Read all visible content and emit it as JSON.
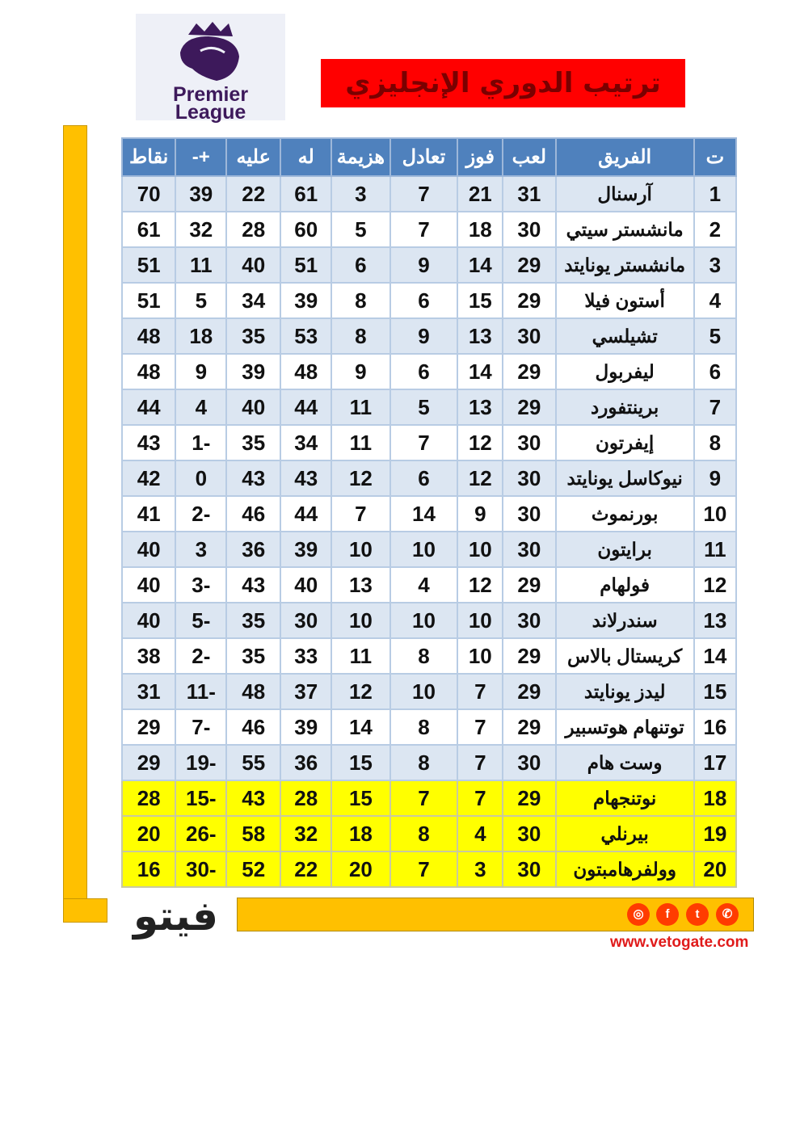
{
  "logo": {
    "line1": "Premier",
    "line2": "League"
  },
  "title": "ترتيب الدوري الإنجليزي",
  "table": {
    "headers": [
      "ت",
      "الفريق",
      "لعب",
      "فوز",
      "تعادل",
      "هزيمة",
      "له",
      "عليه",
      "+-",
      "نقاط"
    ],
    "rows": [
      [
        "1",
        "آرسنال",
        "31",
        "21",
        "7",
        "3",
        "61",
        "22",
        "39",
        "70"
      ],
      [
        "2",
        "مانشستر سيتي",
        "30",
        "18",
        "7",
        "5",
        "60",
        "28",
        "32",
        "61"
      ],
      [
        "3",
        "مانشستر يونايتد",
        "29",
        "14",
        "9",
        "6",
        "51",
        "40",
        "11",
        "51"
      ],
      [
        "4",
        "أستون فيلا",
        "29",
        "15",
        "6",
        "8",
        "39",
        "34",
        "5",
        "51"
      ],
      [
        "5",
        "تشيلسي",
        "30",
        "13",
        "9",
        "8",
        "53",
        "35",
        "18",
        "48"
      ],
      [
        "6",
        "ليفربول",
        "29",
        "14",
        "6",
        "9",
        "48",
        "39",
        "9",
        "48"
      ],
      [
        "7",
        "برينتفورد",
        "29",
        "13",
        "5",
        "11",
        "44",
        "40",
        "4",
        "44"
      ],
      [
        "8",
        "إيفرتون",
        "30",
        "12",
        "7",
        "11",
        "34",
        "35",
        "-1",
        "43"
      ],
      [
        "9",
        "نيوكاسل يونايتد",
        "30",
        "12",
        "6",
        "12",
        "43",
        "43",
        "0",
        "42"
      ],
      [
        "10",
        "بورنموث",
        "30",
        "9",
        "14",
        "7",
        "44",
        "46",
        "-2",
        "41"
      ],
      [
        "11",
        "برايتون",
        "30",
        "10",
        "10",
        "10",
        "39",
        "36",
        "3",
        "40"
      ],
      [
        "12",
        "فولهام",
        "29",
        "12",
        "4",
        "13",
        "40",
        "43",
        "-3",
        "40"
      ],
      [
        "13",
        "سندرلاند",
        "30",
        "10",
        "10",
        "10",
        "30",
        "35",
        "-5",
        "40"
      ],
      [
        "14",
        "كريستال بالاس",
        "29",
        "10",
        "8",
        "11",
        "33",
        "35",
        "-2",
        "38"
      ],
      [
        "15",
        "ليدز يونايتد",
        "29",
        "7",
        "10",
        "12",
        "37",
        "48",
        "-11",
        "31"
      ],
      [
        "16",
        "توتنهام هوتسبير",
        "29",
        "7",
        "8",
        "14",
        "39",
        "46",
        "-7",
        "29"
      ],
      [
        "17",
        "وست هام",
        "30",
        "7",
        "8",
        "15",
        "36",
        "55",
        "-19",
        "29"
      ],
      [
        "18",
        "نوتنجهام",
        "29",
        "7",
        "7",
        "15",
        "28",
        "43",
        "-15",
        "28"
      ],
      [
        "19",
        "بيرنلي",
        "30",
        "4",
        "8",
        "18",
        "32",
        "58",
        "-26",
        "20"
      ],
      [
        "20",
        "وولفرهامبتون",
        "30",
        "3",
        "7",
        "20",
        "22",
        "52",
        "-30",
        "16"
      ]
    ],
    "relegation_rows": [
      18,
      19,
      20
    ]
  },
  "footer": {
    "brand": "فيتو",
    "url": "www.vetogate.com",
    "social_icons": [
      "instagram-icon",
      "facebook-icon",
      "twitter-icon",
      "whatsapp-icon"
    ]
  },
  "colors": {
    "header": "#4f81bd",
    "row_alt": "#dce6f2",
    "relegation": "#ffff00",
    "accent": "#ffc000",
    "title_bg": "#ff0000"
  }
}
